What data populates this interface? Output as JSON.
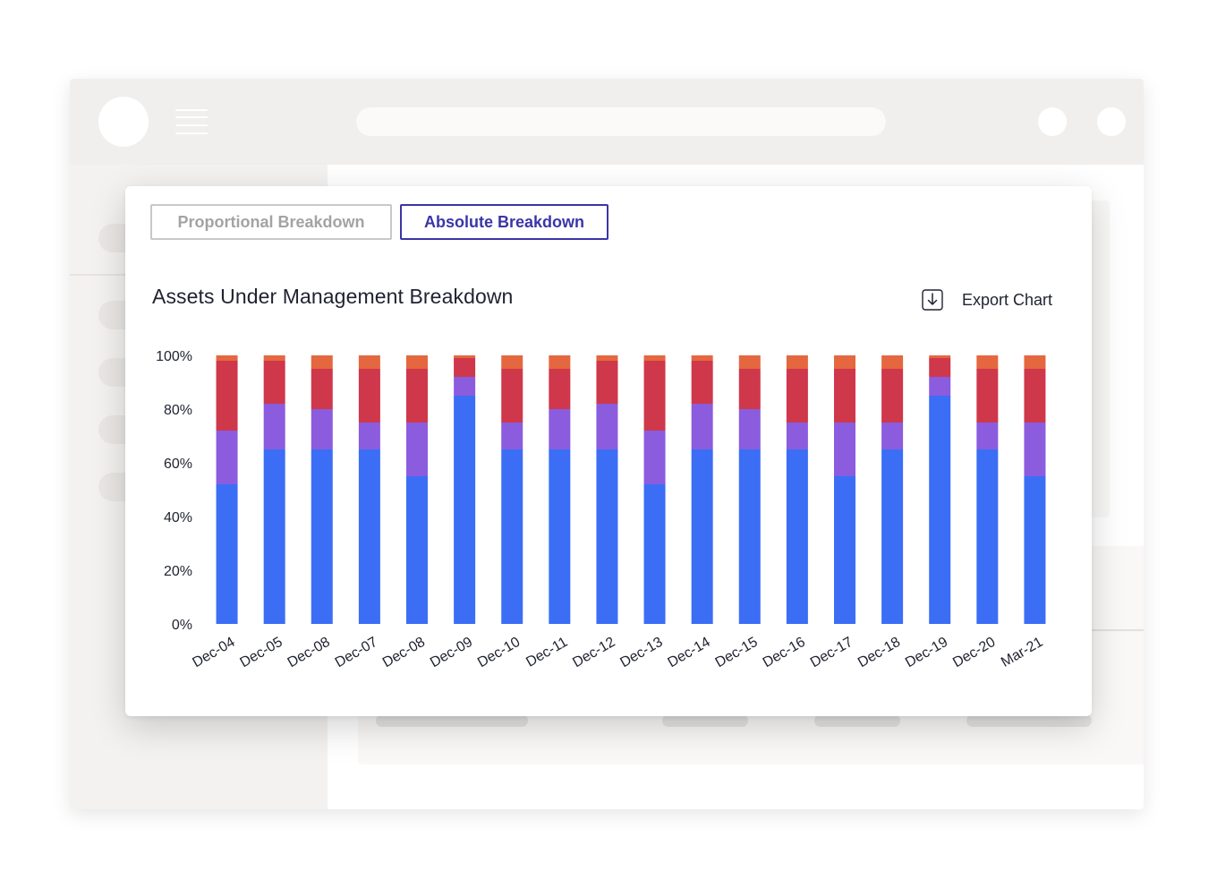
{
  "tabs": {
    "proportional_label": "Proportional Breakdown",
    "absolute_label": "Absolute Breakdown"
  },
  "export": {
    "label": "Export Chart",
    "icon": "download-icon"
  },
  "colors": {
    "series": [
      "#3b6ef5",
      "#8b5cde",
      "#cf374a",
      "#e5673f"
    ],
    "active_tab": "#3b35a8",
    "inactive_tab": "#a3a3a3"
  },
  "chart_data": {
    "type": "bar",
    "stacked": true,
    "title": "Assets Under Management Breakdown",
    "xlabel": "",
    "ylabel": "",
    "ylim": [
      0,
      100
    ],
    "yticks": [
      "0%",
      "20%",
      "40%",
      "60%",
      "80%",
      "100%"
    ],
    "grid": false,
    "categories": [
      "Dec-04",
      "Dec-05",
      "Dec-08",
      "Dec-07",
      "Dec-08",
      "Dec-09",
      "Dec-10",
      "Dec-11",
      "Dec-12",
      "Dec-13",
      "Dec-14",
      "Dec-15",
      "Dec-16",
      "Dec-17",
      "Dec-18",
      "Dec-19",
      "Dec-20",
      "Mar-21"
    ],
    "series": [
      {
        "values": [
          52,
          65,
          65,
          65,
          55,
          85,
          65,
          65,
          65,
          52,
          65,
          65,
          65,
          55,
          65,
          85,
          65,
          55
        ]
      },
      {
        "values": [
          20,
          17,
          15,
          10,
          20,
          7,
          10,
          15,
          17,
          20,
          17,
          15,
          10,
          20,
          10,
          7,
          10,
          20
        ]
      },
      {
        "values": [
          26,
          16,
          15,
          20,
          20,
          7,
          20,
          15,
          16,
          26,
          16,
          15,
          20,
          20,
          20,
          7,
          20,
          20
        ]
      },
      {
        "values": [
          3,
          3,
          6,
          6,
          6,
          3,
          6,
          6,
          3,
          3,
          3,
          6,
          6,
          6,
          6,
          3,
          6,
          6
        ]
      }
    ]
  }
}
